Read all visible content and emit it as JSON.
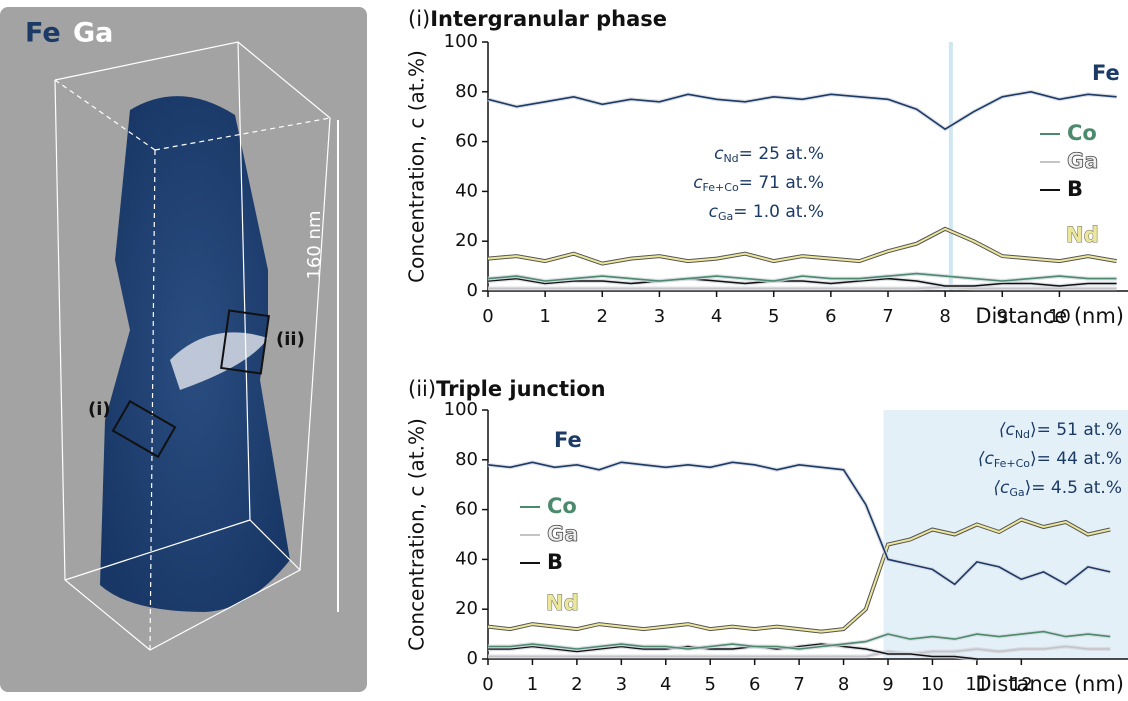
{
  "image_panel": {
    "labels": {
      "fe": "Fe",
      "ga": "Ga",
      "i": "(i)",
      "ii": "(ii)",
      "scale": "160 nm"
    }
  },
  "chart_data": [
    {
      "type": "line",
      "title_prefix": "(i)",
      "title": "Intergranular phase",
      "ylabel": "Concentration, c (at.%)",
      "xlabel": "Distance (nm)",
      "x": [
        0,
        0.5,
        1,
        1.5,
        2,
        2.5,
        3,
        3.5,
        4,
        4.5,
        5,
        5.5,
        6,
        6.5,
        7,
        7.5,
        8,
        8.5,
        9,
        9.5,
        10,
        10.5,
        11
      ],
      "xlim": [
        0,
        11.2
      ],
      "ylim": [
        0,
        100
      ],
      "xticks": [
        0,
        1,
        2,
        3,
        4,
        5,
        6,
        7,
        8,
        9,
        10
      ],
      "yticks": [
        0,
        20,
        40,
        60,
        80,
        100
      ],
      "marker_line": 8.1,
      "series": [
        {
          "name": "Fe",
          "color": "#1b3a66",
          "values": [
            77,
            74,
            76,
            78,
            75,
            77,
            76,
            79,
            77,
            76,
            78,
            77,
            79,
            78,
            77,
            73,
            65,
            72,
            78,
            80,
            77,
            79,
            78
          ]
        },
        {
          "name": "Co",
          "color": "#4b8a6c",
          "values": [
            5,
            6,
            4,
            5,
            6,
            5,
            4,
            5,
            6,
            5,
            4,
            6,
            5,
            5,
            6,
            7,
            6,
            5,
            4,
            5,
            6,
            5,
            5
          ]
        },
        {
          "name": "Ga",
          "color": "#c4c4c4",
          "values": [
            1,
            1,
            1,
            1,
            1,
            1,
            1,
            1,
            1,
            1,
            1,
            1,
            1,
            1,
            1,
            1,
            1.5,
            1,
            1,
            1,
            1,
            1,
            1
          ]
        },
        {
          "name": "B",
          "color": "#111111",
          "values": [
            4,
            5,
            3,
            4,
            4,
            3,
            4,
            5,
            4,
            3,
            4,
            4,
            3,
            4,
            5,
            4,
            2,
            2,
            3,
            3,
            2,
            3,
            3
          ]
        },
        {
          "name": "Nd",
          "color": "#ece79a",
          "values": [
            13,
            14,
            12,
            15,
            11,
            13,
            14,
            12,
            13,
            15,
            12,
            14,
            13,
            12,
            16,
            19,
            25,
            20,
            14,
            13,
            12,
            14,
            12
          ]
        }
      ],
      "annotations": [
        {
          "symbol": "c",
          "sub": "Nd",
          "text": "= 25 at.%"
        },
        {
          "symbol": "c",
          "sub": "Fe+Co",
          "text": "= 71 at.%"
        },
        {
          "symbol": "c",
          "sub": "Ga",
          "text": "= 1.0 at.%"
        }
      ]
    },
    {
      "type": "line",
      "title_prefix": "(ii)",
      "title": "Triple junction",
      "ylabel": "Concentration, c (at.%)",
      "xlabel": "Distance (nm)",
      "x": [
        0,
        0.5,
        1,
        1.5,
        2,
        2.5,
        3,
        3.5,
        4,
        4.5,
        5,
        5.5,
        6,
        6.5,
        7,
        7.5,
        8,
        8.5,
        9,
        9.5,
        10,
        10.5,
        11,
        11.5,
        12,
        12.5,
        13,
        13.5,
        14
      ],
      "xlim": [
        0,
        14.4
      ],
      "ylim": [
        0,
        100
      ],
      "xticks": [
        0,
        1,
        2,
        3,
        4,
        5,
        6,
        7,
        8,
        9,
        10,
        11,
        12
      ],
      "yticks": [
        0,
        20,
        40,
        60,
        80,
        100
      ],
      "shaded_from": 8.9,
      "series": [
        {
          "name": "Fe",
          "color": "#1b3a66",
          "values": [
            78,
            77,
            79,
            77,
            78,
            76,
            79,
            78,
            77,
            78,
            77,
            79,
            78,
            76,
            78,
            77,
            76,
            62,
            40,
            38,
            36,
            30,
            39,
            37,
            32,
            35,
            30,
            37,
            35
          ]
        },
        {
          "name": "Co",
          "color": "#4b8a6c",
          "values": [
            5,
            5,
            6,
            5,
            4,
            5,
            6,
            5,
            5,
            4,
            5,
            6,
            5,
            5,
            4,
            5,
            6,
            7,
            10,
            8,
            9,
            8,
            10,
            9,
            10,
            11,
            9,
            10,
            9
          ]
        },
        {
          "name": "Ga",
          "color": "#c4c4c4",
          "values": [
            1,
            1,
            1,
            1,
            1,
            1,
            1,
            1,
            1,
            1,
            1,
            1,
            1,
            1,
            1,
            1,
            1,
            1,
            3,
            2,
            3,
            3,
            4,
            3,
            4,
            4,
            5,
            4,
            4
          ]
        },
        {
          "name": "B",
          "color": "#111111",
          "values": [
            4,
            4,
            5,
            4,
            3,
            4,
            5,
            4,
            4,
            5,
            4,
            4,
            5,
            4,
            5,
            6,
            5,
            4,
            2,
            2,
            1,
            1,
            0,
            null,
            null,
            null,
            null,
            null,
            null
          ]
        },
        {
          "name": "Nd",
          "color": "#ece79a",
          "values": [
            13,
            12,
            14,
            13,
            12,
            14,
            13,
            12,
            13,
            14,
            12,
            13,
            12,
            13,
            12,
            11,
            12,
            20,
            46,
            48,
            52,
            50,
            54,
            51,
            56,
            53,
            55,
            50,
            52
          ]
        }
      ],
      "annotations": [
        {
          "symbol": "⟨c",
          "sub": "Nd",
          "text": "⟩= 51 at.%"
        },
        {
          "symbol": "⟨c",
          "sub": "Fe+Co",
          "text": "⟩= 44 at.%"
        },
        {
          "symbol": "⟨c",
          "sub": "Ga",
          "text": "⟩= 4.5 at.%"
        }
      ]
    }
  ]
}
